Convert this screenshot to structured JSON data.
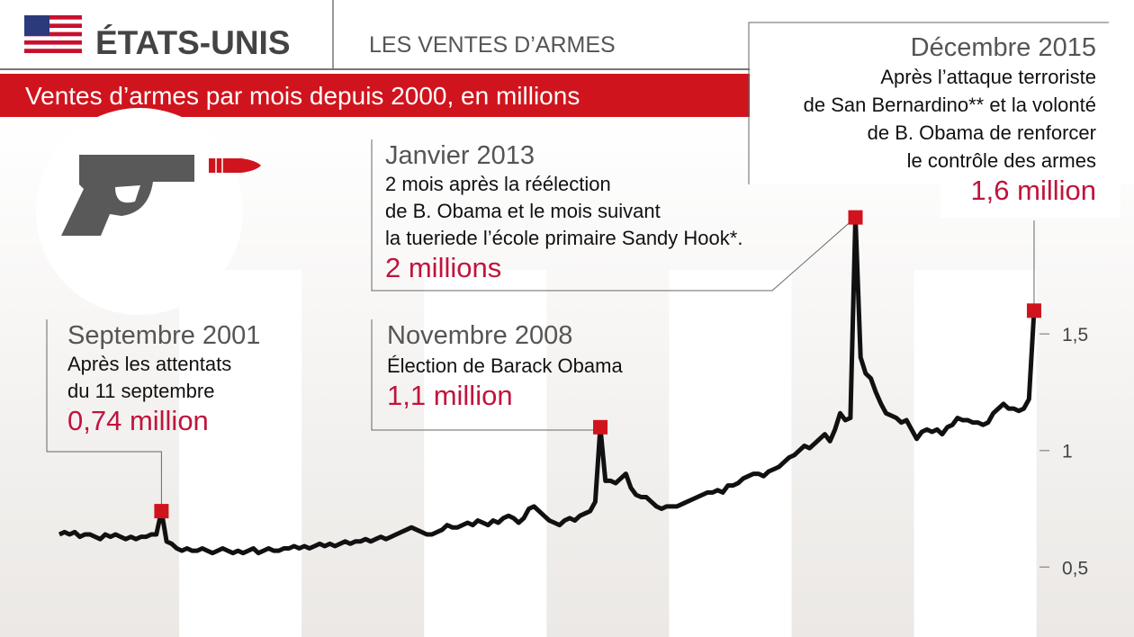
{
  "header": {
    "country": "ÉTATS-UNIS",
    "section": "LES VENTES D’ARMES"
  },
  "chart_data": {
    "type": "line",
    "title": "Ventes d’armes par mois depuis 2000, en millions",
    "color": "#111111",
    "marker_color": "#d0141d",
    "categories": [
      null,
      null,
      null,
      null,
      null,
      null,
      null,
      null,
      null,
      null,
      null,
      null,
      null,
      null,
      null,
      null,
      null,
      null,
      null,
      null,
      null,
      null,
      null,
      null,
      null,
      null,
      null,
      null,
      null,
      null,
      null,
      null,
      null,
      null,
      null,
      null,
      null,
      null,
      null,
      null,
      null,
      null,
      null,
      null,
      null,
      null,
      null,
      null,
      null,
      null,
      null,
      null,
      null,
      null,
      null,
      null,
      null,
      null,
      null,
      null,
      null,
      null,
      null,
      null,
      null,
      null,
      null,
      null,
      null,
      null,
      null,
      null,
      null,
      null,
      null,
      null,
      null,
      null,
      null,
      null,
      null,
      null,
      null,
      null,
      null,
      null,
      null,
      null,
      null,
      null,
      null,
      null,
      null,
      null,
      null,
      null,
      null,
      null,
      null,
      null,
      null,
      null,
      null,
      null,
      null,
      null,
      null,
      null,
      null,
      null,
      null,
      null,
      null,
      null,
      null,
      null,
      null,
      null,
      null,
      null,
      null,
      null,
      null,
      null,
      null,
      null,
      null,
      null,
      null,
      null,
      null,
      null,
      null,
      null,
      null,
      null,
      null,
      null,
      null,
      null,
      null,
      null,
      null,
      null,
      null,
      null,
      null,
      null,
      null,
      null,
      null,
      null,
      null,
      null,
      null,
      null,
      null,
      null,
      null,
      null,
      null,
      null,
      null,
      null,
      null,
      null,
      null,
      null,
      null,
      null,
      null,
      null,
      null,
      null,
      null,
      null,
      null,
      null,
      null,
      null,
      null,
      null,
      null,
      null,
      null,
      null,
      null,
      null,
      null,
      null,
      null,
      null
    ],
    "values": [
      0.64,
      0.65,
      0.64,
      0.65,
      0.63,
      0.64,
      0.64,
      0.63,
      0.62,
      0.64,
      0.63,
      0.64,
      0.63,
      0.62,
      0.63,
      0.62,
      0.63,
      0.63,
      0.64,
      0.64,
      0.74,
      0.61,
      0.6,
      0.58,
      0.57,
      0.58,
      0.57,
      0.57,
      0.58,
      0.57,
      0.56,
      0.57,
      0.58,
      0.57,
      0.56,
      0.57,
      0.56,
      0.57,
      0.58,
      0.56,
      0.57,
      0.58,
      0.57,
      0.57,
      0.58,
      0.58,
      0.59,
      0.58,
      0.59,
      0.58,
      0.59,
      0.6,
      0.59,
      0.6,
      0.59,
      0.6,
      0.61,
      0.6,
      0.61,
      0.61,
      0.62,
      0.61,
      0.62,
      0.63,
      0.62,
      0.63,
      0.64,
      0.65,
      0.66,
      0.67,
      0.66,
      0.65,
      0.64,
      0.64,
      0.65,
      0.66,
      0.68,
      0.67,
      0.67,
      0.68,
      0.69,
      0.68,
      0.7,
      0.69,
      0.68,
      0.7,
      0.69,
      0.71,
      0.72,
      0.71,
      0.69,
      0.71,
      0.75,
      0.76,
      0.74,
      0.72,
      0.7,
      0.69,
      0.68,
      0.7,
      0.71,
      0.7,
      0.72,
      0.73,
      0.74,
      0.78,
      1.1,
      0.87,
      0.87,
      0.86,
      0.88,
      0.9,
      0.84,
      0.81,
      0.8,
      0.8,
      0.78,
      0.76,
      0.75,
      0.76,
      0.76,
      0.76,
      0.77,
      0.78,
      0.79,
      0.8,
      0.81,
      0.82,
      0.82,
      0.83,
      0.82,
      0.85,
      0.85,
      0.86,
      0.88,
      0.89,
      0.9,
      0.9,
      0.89,
      0.91,
      0.92,
      0.93,
      0.95,
      0.97,
      0.98,
      1.0,
      1.02,
      1.01,
      1.03,
      1.05,
      1.07,
      1.04,
      1.09,
      1.16,
      1.13,
      1.14,
      2,
      1.4,
      1.33,
      1.31,
      1.25,
      1.2,
      1.16,
      1.15,
      1.14,
      1.12,
      1.13,
      1.09,
      1.05,
      1.08,
      1.09,
      1.08,
      1.09,
      1.07,
      1.1,
      1.11,
      1.14,
      1.13,
      1.13,
      1.12,
      1.12,
      1.11,
      1.12,
      1.16,
      1.18,
      1.2,
      1.18,
      1.18,
      1.17,
      1.18,
      1.22,
      1.6
    ],
    "ylim": [
      0.2,
      2.4
    ],
    "yticks": [
      {
        "value": 0.5,
        "label": "0,5"
      },
      1,
      {
        "value": 1.5,
        "label": "1,5"
      }
    ],
    "annotations": [
      {
        "title": "Septembre 2001",
        "lines": [
          "Après les attentats",
          "du 11 septembre"
        ],
        "value": 0.74,
        "value_label": "0,74 million"
      },
      {
        "title": "Novembre 2008",
        "lines": [
          "Élection de Barack Obama"
        ],
        "value": 1.1,
        "value_label": "1,1 million"
      },
      {
        "title": "Janvier 2013",
        "lines": [
          "2 mois après la réélection",
          "de B. Obama et le mois suivant",
          "la tueriede l’école primaire Sandy Hook*."
        ],
        "value": 2,
        "value_label": "2 millions"
      },
      {
        "title": "Décembre 2015",
        "lines": [
          "Après l’attaque terroriste",
          "de San Bernardino** et la volonté",
          "de B. Obama de renforcer",
          "le contrôle des armes"
        ],
        "value": 1.6,
        "value_label": "1,6 million"
      }
    ]
  }
}
